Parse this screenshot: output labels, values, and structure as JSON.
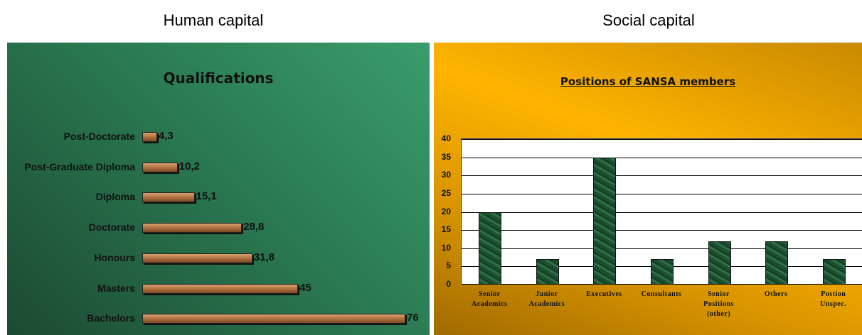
{
  "header": {
    "left": "Human capital",
    "right": "Social capital"
  },
  "chart_data": [
    {
      "type": "hbar",
      "title": "Qualifications",
      "categories": [
        "Post-Doctorate",
        "Post-Graduate Diploma",
        "Diploma",
        "Doctorate",
        "Honours",
        "Masters",
        "Bachelors"
      ],
      "values": [
        4.3,
        10.2,
        15.1,
        28.8,
        31.8,
        45,
        76
      ],
      "value_labels": [
        "4,3",
        "10,2",
        "15,1",
        "28,8",
        "31,8",
        "45",
        "76"
      ],
      "color": "#b87a4a"
    },
    {
      "type": "bar",
      "title": "Positions of SANSA members",
      "categories": [
        "Senior Academics",
        "Junior Academics",
        "Executives",
        "Consultants",
        "Senior Positions (other)",
        "Others",
        "Postion Unspec."
      ],
      "values": [
        20,
        7,
        35,
        7,
        12,
        12,
        7
      ],
      "color": "#1f5a34",
      "ylim": [
        0,
        40
      ],
      "yticks": [
        0,
        5,
        10,
        15,
        20,
        25,
        30,
        35,
        40
      ],
      "grid": true
    }
  ]
}
